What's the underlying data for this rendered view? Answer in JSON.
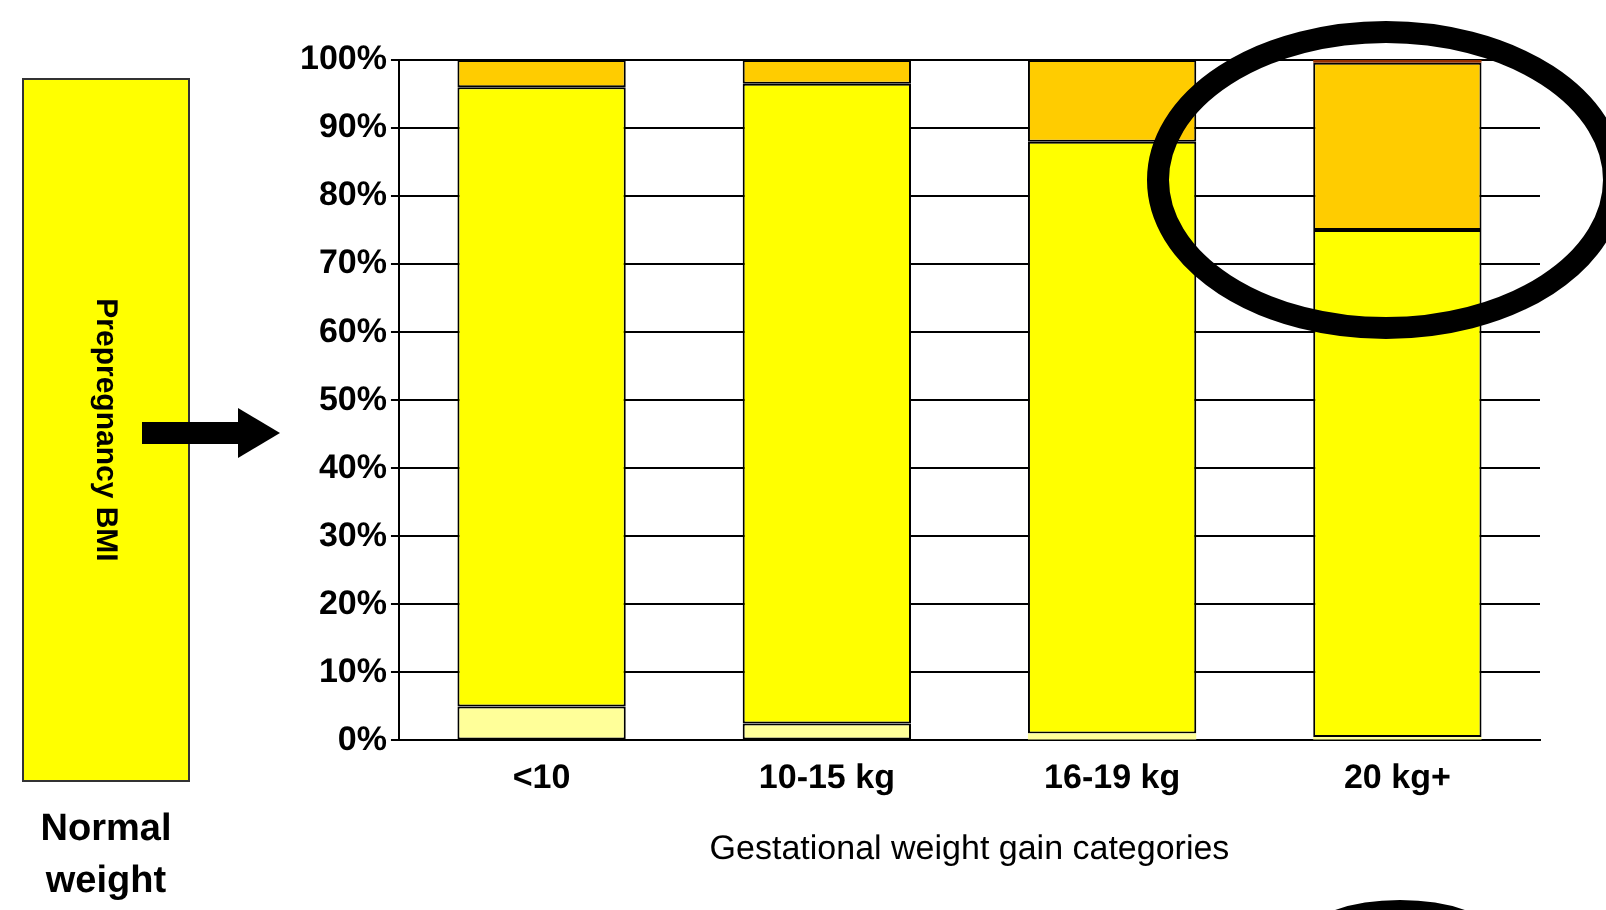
{
  "chart_data": {
    "type": "bar",
    "stacked": true,
    "xlabel": "Gestational weight gain categories",
    "categories": [
      "<10",
      "10-15 kg",
      "16-19 kg",
      "20 kg+"
    ],
    "series": [
      {
        "color": "#ffff99",
        "values": [
          5,
          2.5,
          1,
          0.5
        ]
      },
      {
        "color": "#ffff00",
        "values": [
          91,
          94,
          87,
          74.5
        ]
      },
      {
        "color": "#ffcc00",
        "values": [
          4,
          3.5,
          12,
          24.6
        ]
      },
      {
        "color": "#993300",
        "values": [
          0,
          0,
          0,
          0.4
        ]
      }
    ],
    "ylim": [
      0,
      100
    ],
    "yticks": [
      {
        "value": 0,
        "label": "0%"
      },
      {
        "value": 10,
        "label": "10%"
      },
      {
        "value": 20,
        "label": "20%"
      },
      {
        "value": 30,
        "label": "30%"
      },
      {
        "value": 40,
        "label": "40%"
      },
      {
        "value": 50,
        "label": "50%"
      },
      {
        "value": 60,
        "label": "60%"
      },
      {
        "value": 70,
        "label": "70%"
      },
      {
        "value": 80,
        "label": "80%"
      },
      {
        "value": 90,
        "label": "90%"
      },
      {
        "value": 100,
        "label": "100%"
      }
    ],
    "grid": "y",
    "annotations": [
      "Prepregnancy BMI",
      "Normal weight"
    ]
  }
}
